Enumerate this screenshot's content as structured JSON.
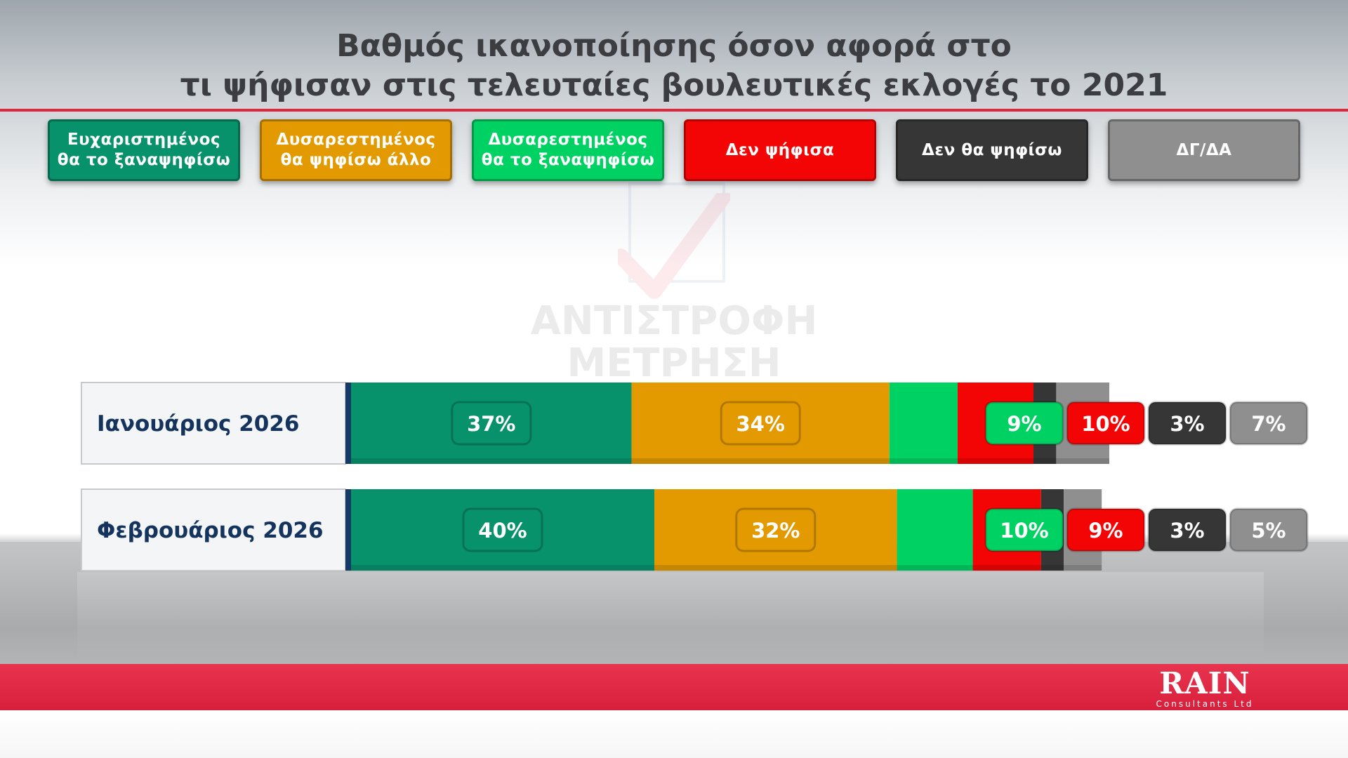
{
  "title_lines": [
    "Βαθμός ικανοποίησης όσον αφορά στο",
    "τι ψήφισαν στις τελευταίες βουλευτικές εκλογές το 2021"
  ],
  "legend": [
    {
      "lines": [
        "Ευχαριστημένος",
        "θα το ξαναψηφίσω"
      ],
      "color": "#07926b"
    },
    {
      "lines": [
        "Δυσαρεστημένος",
        "θα ψηφίσω άλλο"
      ],
      "color": "#e29a00"
    },
    {
      "lines": [
        "Δυσαρεστημένος",
        "θα το ξαναψηφίσω"
      ],
      "color": "#00d163"
    },
    {
      "lines": [
        "Δεν ψήφισα"
      ],
      "color": "#f30505"
    },
    {
      "lines": [
        "Δεν θα ψηφίσω"
      ],
      "color": "#363636"
    },
    {
      "lines": [
        "ΔΓ/ΔΑ"
      ],
      "color": "#8f8f8f"
    }
  ],
  "watermark": [
    "ΑΝΤΙΣΤΡΟΦΗ",
    "ΜΕΤΡΗΣΗ"
  ],
  "logo": {
    "main": "RAIN",
    "sub": "Consultants Ltd"
  },
  "chart_data": {
    "type": "bar",
    "orientation": "horizontal",
    "stacked": true,
    "unit": "%",
    "categories": [
      "Ιανουάριος 2026",
      "Φεβρουάριος 2026"
    ],
    "series": [
      {
        "name": "Ευχαριστημένος θα το ξαναψηφίσω",
        "color": "#07926b",
        "values": [
          37,
          40
        ],
        "labels": [
          "37%",
          "40%"
        ]
      },
      {
        "name": "Δυσαρεστημένος θα ψηφίσω άλλο",
        "color": "#e29a00",
        "values": [
          34,
          32
        ],
        "labels": [
          "34%",
          "32%"
        ]
      },
      {
        "name": "Δυσαρεστημένος θα το ξαναψηφίσω",
        "color": "#00d163",
        "values": [
          9,
          10
        ],
        "labels": [
          "9%",
          "10%"
        ]
      },
      {
        "name": "Δεν ψήφισα",
        "color": "#f30505",
        "values": [
          10,
          9
        ],
        "labels": [
          "10%",
          "9%"
        ]
      },
      {
        "name": "Δεν θα ψηφίσω",
        "color": "#363636",
        "values": [
          3,
          3
        ],
        "labels": [
          "3%",
          "3%"
        ]
      },
      {
        "name": "ΔΓ/ΔΑ",
        "color": "#8f8f8f",
        "values": [
          7,
          5
        ],
        "labels": [
          "7%",
          "5%"
        ]
      }
    ],
    "title": "Βαθμός ικανοποίησης όσον αφορά στο τι ψήφισαν στις τελευταίες βουλευτικές εκλογές το 2021",
    "xlabel": "",
    "ylabel": "",
    "grid": false,
    "legend_position": "top"
  }
}
